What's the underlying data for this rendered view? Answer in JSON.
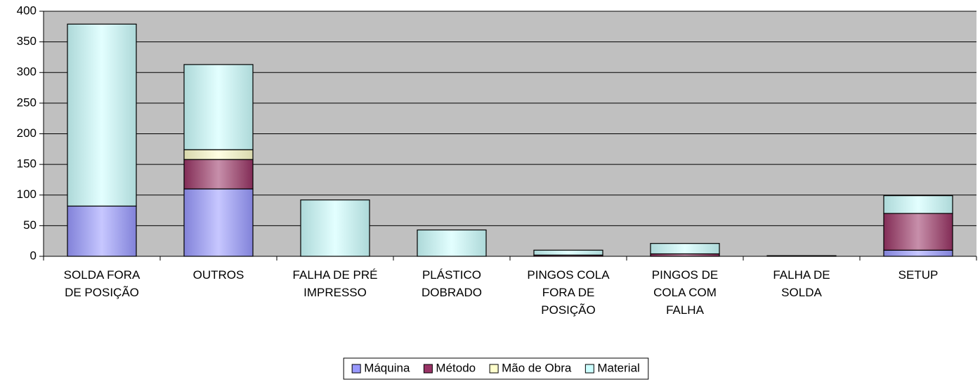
{
  "chart_data": {
    "type": "bar",
    "stacked": true,
    "categories": [
      "SOLDA FORA DE POSIÇÃO",
      "OUTROS",
      "FALHA DE PRÉ IMPRESSO",
      "PLÁSTICO DOBRADO",
      "PINGOS COLA FORA DE POSIÇÃO",
      "PINGOS DE COLA COM FALHA",
      "FALHA DE SOLDA",
      "SETUP"
    ],
    "series": [
      {
        "name": "Máquina",
        "color": "#9999ff",
        "values": [
          82,
          110,
          0,
          0,
          0,
          0,
          0,
          10
        ]
      },
      {
        "name": "Método",
        "color": "#993366",
        "values": [
          0,
          48,
          0,
          0,
          2,
          4,
          1,
          60
        ]
      },
      {
        "name": "Mão de Obra",
        "color": "#ffffcc",
        "values": [
          0,
          16,
          0,
          0,
          0,
          0,
          0,
          0
        ]
      },
      {
        "name": "Material",
        "color": "#ccffff",
        "values": [
          297,
          139,
          92,
          43,
          8,
          17,
          0,
          29
        ]
      }
    ],
    "ylim": [
      0,
      400
    ],
    "yticks": [
      0,
      50,
      100,
      150,
      200,
      250,
      300,
      350,
      400
    ],
    "grid": true,
    "plot_background": "#c0c0c0",
    "legend": "bottom"
  }
}
